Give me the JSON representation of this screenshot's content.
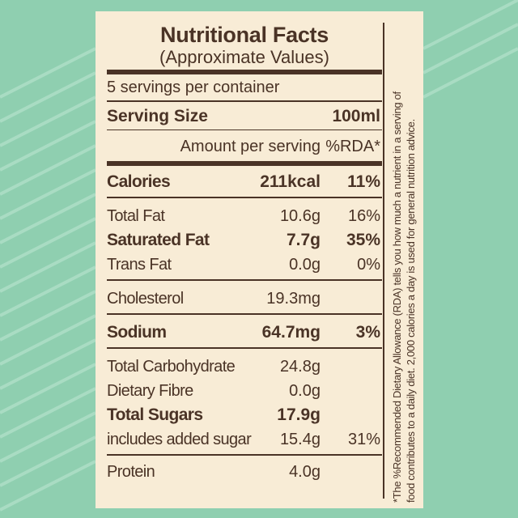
{
  "label": {
    "title": "Nutritional Facts",
    "subtitle": "(Approximate Values)",
    "servings": "5 servings per container",
    "serving_size_label": "Serving Size",
    "serving_size_value": "100ml",
    "amount_header": "Amount per serving",
    "rda_header": "%RDA*",
    "rows": [
      {
        "label": "Calories",
        "amount": "211kcal",
        "pct": "11%",
        "bold": true
      },
      {
        "label": "Total Fat",
        "amount": "10.6g",
        "pct": "16%",
        "bold": false
      },
      {
        "label": "Saturated Fat",
        "amount": "7.7g",
        "pct": "35%",
        "bold": true
      },
      {
        "label": "Trans Fat",
        "amount": "0.0g",
        "pct": "0%",
        "bold": false
      },
      {
        "label": "Cholesterol",
        "amount": "19.3mg",
        "pct": "",
        "bold": false
      },
      {
        "label": "Sodium",
        "amount": "64.7mg",
        "pct": "3%",
        "bold": true
      },
      {
        "label": "Total Carbohydrate",
        "amount": "24.8g",
        "pct": "",
        "bold": false
      },
      {
        "label": "Dietary Fibre",
        "amount": "0.0g",
        "pct": "",
        "bold": false
      },
      {
        "label": "Total Sugars",
        "amount": "17.9g",
        "pct": "",
        "bold": true
      },
      {
        "label": "includes added sugar",
        "amount": "15.4g",
        "pct": "31%",
        "bold": false
      },
      {
        "label": "Protein",
        "amount": "4.0g",
        "pct": "",
        "bold": false
      }
    ],
    "footnote_line1": "*The %Recommended Dietary Allowance (RDA) tells you how much a nutrient in a serving of",
    "footnote_line2": "food contributes to a daily diet. 2,000 calories a day is used for general nutrition advice."
  },
  "colors": {
    "background": "#8fcfb0",
    "card": "#f8ecd6",
    "text": "#4a3326"
  }
}
